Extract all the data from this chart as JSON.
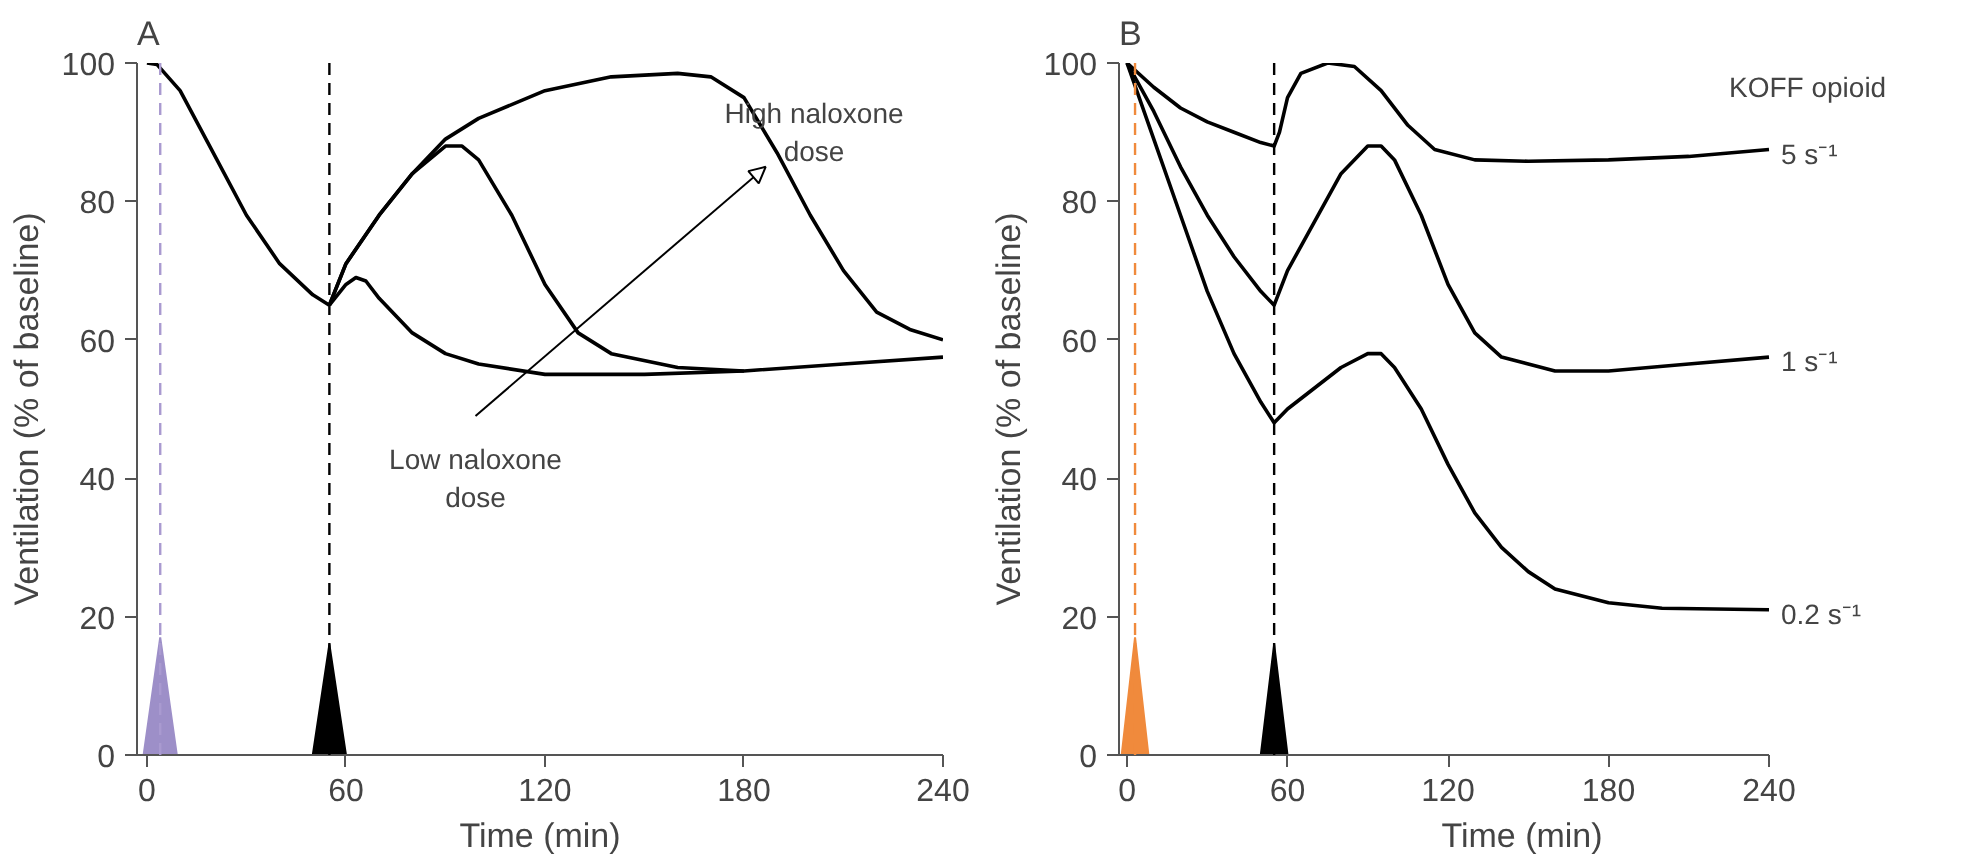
{
  "chart_data": [
    {
      "type": "line",
      "title": "A",
      "xlabel": "Time (min)",
      "ylabel": "Ventilation (% of baseline)",
      "xlim": [
        -3,
        240
      ],
      "ylim": [
        0,
        100
      ],
      "xticks": [
        0,
        60,
        120,
        180,
        240
      ],
      "yticks": [
        0,
        20,
        40,
        60,
        80,
        100
      ],
      "grid": false,
      "legend": false,
      "marker": "none",
      "line_style": "solid",
      "series": [
        {
          "color": "#000000",
          "x": [
            0,
            3,
            10,
            20,
            30,
            40,
            50,
            55
          ],
          "values": [
            100,
            99.8,
            96,
            87,
            78,
            71,
            66.5,
            65
          ]
        },
        {
          "color": "#000000",
          "x": [
            55,
            60,
            63,
            66,
            70,
            80,
            90,
            100,
            120,
            150,
            180,
            210,
            240
          ],
          "values": [
            65,
            68,
            69,
            68.5,
            66,
            61,
            58,
            56.5,
            55,
            55,
            55.5,
            56.5,
            57.5
          ]
        },
        {
          "color": "#000000",
          "x": [
            55,
            60,
            70,
            80,
            90,
            95,
            100,
            110,
            120,
            130,
            140,
            160,
            180
          ],
          "values": [
            65,
            71,
            78,
            84,
            88,
            88,
            86,
            78,
            68,
            61,
            58,
            56,
            55.5
          ]
        },
        {
          "color": "#000000",
          "x": [
            55,
            60,
            70,
            80,
            90,
            100,
            120,
            140,
            160,
            170,
            180,
            190,
            200,
            210,
            220,
            230,
            240
          ],
          "values": [
            65,
            71,
            78,
            84,
            89,
            92,
            96,
            98,
            98.5,
            98,
            95,
            87,
            78,
            70,
            64,
            61.5,
            60
          ]
        },
        {
          "type": "area",
          "color": "#9d8fc8",
          "x": [
            -1,
            4,
            9
          ],
          "values": [
            0,
            17,
            0
          ]
        },
        {
          "type": "area",
          "color": "#000000",
          "x": [
            50,
            55,
            60
          ],
          "values": [
            0,
            16,
            0
          ]
        }
      ],
      "ref_lines": [
        {
          "axis": "x",
          "value": 4,
          "color": "#a99ad0",
          "line_style": "dashed"
        },
        {
          "axis": "x",
          "value": 55,
          "color": "#000000",
          "line_style": "dashed"
        }
      ],
      "annotations": [
        "High naloxone dose",
        "Low naloxone dose"
      ]
    },
    {
      "type": "line",
      "title": "B",
      "xlabel": "Time (min)",
      "ylabel": "Ventilation (% of baseline)",
      "legend_title": "KOFF opioid",
      "xlim": [
        -3,
        240
      ],
      "ylim": [
        0,
        100
      ],
      "xticks": [
        0,
        60,
        120,
        180,
        240
      ],
      "yticks": [
        0,
        20,
        40,
        60,
        80,
        100
      ],
      "grid": false,
      "legend": false,
      "marker": "none",
      "line_style": "solid",
      "series": [
        {
          "name": "5 s⁻¹",
          "color": "#000000",
          "x": [
            0,
            10,
            20,
            30,
            40,
            50,
            55,
            57,
            60,
            65,
            75,
            85,
            95,
            105,
            115,
            130,
            150,
            180,
            210,
            240
          ],
          "values": [
            100,
            96.5,
            93.5,
            91.5,
            90,
            88.5,
            88,
            90,
            95,
            98.5,
            100,
            99.5,
            96,
            91,
            87.5,
            86,
            85.8,
            86,
            86.5,
            87.5
          ]
        },
        {
          "name": "1 s⁻¹",
          "color": "#000000",
          "x": [
            0,
            10,
            20,
            30,
            40,
            50,
            55,
            60,
            70,
            80,
            90,
            95,
            100,
            110,
            120,
            130,
            140,
            160,
            180,
            210,
            240
          ],
          "values": [
            100,
            93,
            85,
            78,
            72,
            67,
            65,
            70,
            77,
            84,
            88,
            88,
            86,
            78,
            68,
            61,
            57.5,
            55.5,
            55.5,
            56.5,
            57.5
          ]
        },
        {
          "name": "0.2 s⁻¹",
          "color": "#000000",
          "x": [
            0,
            10,
            20,
            30,
            40,
            50,
            55,
            60,
            70,
            80,
            90,
            95,
            100,
            110,
            120,
            130,
            140,
            150,
            160,
            180,
            200,
            240
          ],
          "values": [
            100,
            89,
            78,
            67,
            58,
            51,
            48,
            50,
            53,
            56,
            58,
            58,
            56,
            50,
            42,
            35,
            30,
            26.5,
            24,
            22,
            21.2,
            21
          ]
        },
        {
          "type": "area",
          "color": "#f08a3c",
          "x": [
            -2,
            3,
            8
          ],
          "values": [
            0,
            17,
            0
          ]
        },
        {
          "type": "area",
          "color": "#000000",
          "x": [
            50,
            55,
            60
          ],
          "values": [
            0,
            16,
            0
          ]
        }
      ],
      "ref_lines": [
        {
          "axis": "x",
          "value": 3,
          "color": "#f08a3c",
          "line_style": "dashed"
        },
        {
          "axis": "x",
          "value": 55,
          "color": "#000000",
          "line_style": "dashed"
        }
      ]
    }
  ]
}
